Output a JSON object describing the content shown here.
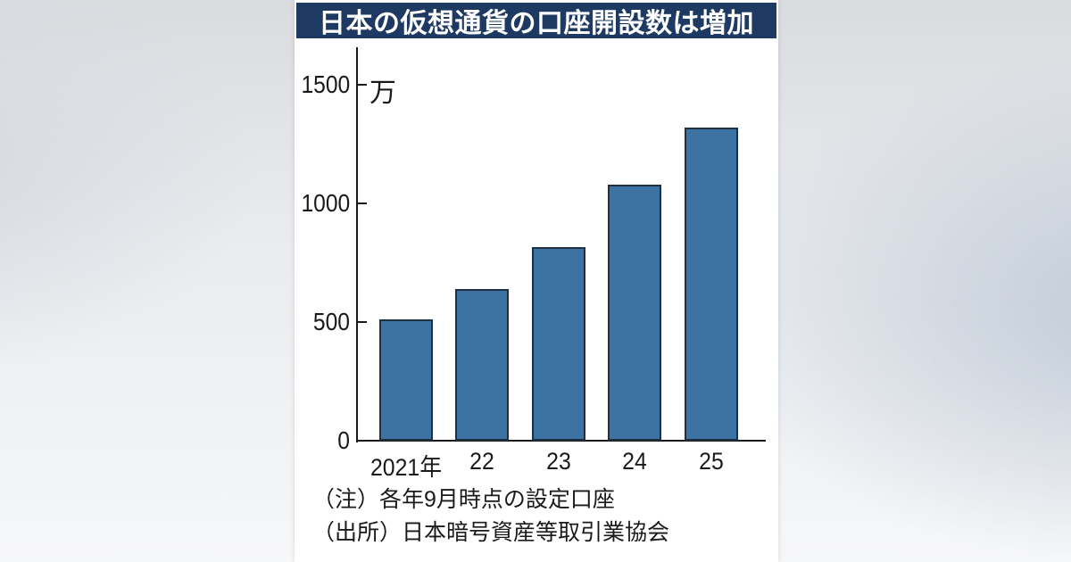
{
  "title_bar": {
    "bg": "#1e3a62",
    "fg": "#ffffff"
  },
  "notes": {
    "line1": "（注）各年9月時点の設定口座",
    "line2": "（出所）日本暗号資産等取引業協会"
  },
  "chart_data": {
    "type": "bar",
    "title": "日本の仮想通貨の口座開設数は増加",
    "categories": [
      "2021年",
      "22",
      "23",
      "24",
      "25"
    ],
    "values": [
      510,
      640,
      815,
      1080,
      1320
    ],
    "unit_label": "万",
    "ylabel": "",
    "xlabel": "",
    "ylim": [
      0,
      1500
    ],
    "yticks": [
      0,
      500,
      1000,
      1500
    ],
    "grid": false,
    "legend": false,
    "tick_style": "inward",
    "bar_color": "#3d73a3",
    "bar_border_color": "#1f3040",
    "axis_color": "#1a1a1a",
    "text_color": "#1a1a1a"
  }
}
